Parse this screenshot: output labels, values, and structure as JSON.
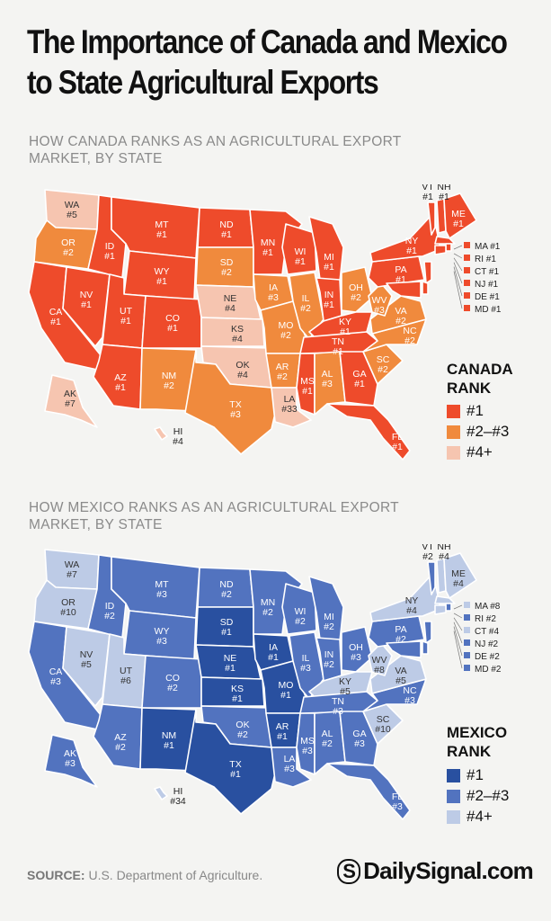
{
  "title": "The Importance of Canada and Mexico to State Agricultural Exports",
  "canada": {
    "subtitle": "HOW CANADA RANKS AS AN AGRICULTURAL EXPORT MARKET, BY STATE",
    "legend_title": "CANADA RANK",
    "legend": [
      "#1",
      "#2–#3",
      "#4+"
    ],
    "colors": [
      "#ee4b2b",
      "#f08a3d",
      "#f6c5b0"
    ]
  },
  "mexico": {
    "subtitle": "HOW MEXICO RANKS AS AN AGRICULTURAL EXPORT MARKET, BY STATE",
    "legend_title": "MEXICO RANK",
    "legend": [
      "#1",
      "#2–#3",
      "#4+"
    ],
    "colors": [
      "#2950a0",
      "#5273bf",
      "#bdcbe6"
    ]
  },
  "states": {
    "WA": {
      "canada": "#5",
      "mexico": "#7"
    },
    "OR": {
      "canada": "#2",
      "mexico": "#10"
    },
    "CA": {
      "canada": "#1",
      "mexico": "#3"
    },
    "NV": {
      "canada": "#1",
      "mexico": "#5"
    },
    "ID": {
      "canada": "#1",
      "mexico": "#2"
    },
    "MT": {
      "canada": "#1",
      "mexico": "#3"
    },
    "WY": {
      "canada": "#1",
      "mexico": "#3"
    },
    "UT": {
      "canada": "#1",
      "mexico": "#6"
    },
    "AZ": {
      "canada": "#1",
      "mexico": "#2"
    },
    "CO": {
      "canada": "#1",
      "mexico": "#2"
    },
    "NM": {
      "canada": "#2",
      "mexico": "#1"
    },
    "ND": {
      "canada": "#1",
      "mexico": "#2"
    },
    "SD": {
      "canada": "#2",
      "mexico": "#1"
    },
    "NE": {
      "canada": "#4",
      "mexico": "#1"
    },
    "KS": {
      "canada": "#4",
      "mexico": "#1"
    },
    "OK": {
      "canada": "#4",
      "mexico": "#2"
    },
    "TX": {
      "canada": "#3",
      "mexico": "#1"
    },
    "MN": {
      "canada": "#1",
      "mexico": "#2"
    },
    "IA": {
      "canada": "#3",
      "mexico": "#1"
    },
    "MO": {
      "canada": "#2",
      "mexico": "#1"
    },
    "AR": {
      "canada": "#2",
      "mexico": "#1"
    },
    "LA": {
      "canada": "#33",
      "mexico": "#3"
    },
    "WI": {
      "canada": "#1",
      "mexico": "#2"
    },
    "IL": {
      "canada": "#2",
      "mexico": "#3"
    },
    "MS": {
      "canada": "#1",
      "mexico": "#3"
    },
    "MI": {
      "canada": "#1",
      "mexico": "#2"
    },
    "IN": {
      "canada": "#1",
      "mexico": "#2"
    },
    "OH": {
      "canada": "#2",
      "mexico": "#3"
    },
    "KY": {
      "canada": "#1",
      "mexico": "#5"
    },
    "TN": {
      "canada": "#1",
      "mexico": "#3"
    },
    "AL": {
      "canada": "#3",
      "mexico": "#2"
    },
    "GA": {
      "canada": "#1",
      "mexico": "#3"
    },
    "FL": {
      "canada": "#1",
      "mexico": "#3"
    },
    "SC": {
      "canada": "#2",
      "mexico": "#10"
    },
    "NC": {
      "canada": "#2",
      "mexico": "#3"
    },
    "VA": {
      "canada": "#2",
      "mexico": "#5"
    },
    "WV": {
      "canada": "#3",
      "mexico": "#8"
    },
    "PA": {
      "canada": "#1",
      "mexico": "#2"
    },
    "NY": {
      "canada": "#1",
      "mexico": "#4"
    },
    "VT": {
      "canada": "#1",
      "mexico": "#2"
    },
    "NH": {
      "canada": "#1",
      "mexico": "#4"
    },
    "ME": {
      "canada": "#1",
      "mexico": "#4"
    },
    "MA": {
      "canada": "#1",
      "mexico": "#8"
    },
    "RI": {
      "canada": "#1",
      "mexico": "#2"
    },
    "CT": {
      "canada": "#1",
      "mexico": "#4"
    },
    "NJ": {
      "canada": "#1",
      "mexico": "#2"
    },
    "DE": {
      "canada": "#1",
      "mexico": "#2"
    },
    "MD": {
      "canada": "#1",
      "mexico": "#2"
    },
    "AK": {
      "canada": "#7",
      "mexico": "#3"
    },
    "HI": {
      "canada": "#4",
      "mexico": "#34"
    }
  },
  "footer": {
    "source_label": "SOURCE:",
    "source_text": "U.S. Department of Agriculture.",
    "brand_mark": "S",
    "brand": "DailySignal.com"
  }
}
